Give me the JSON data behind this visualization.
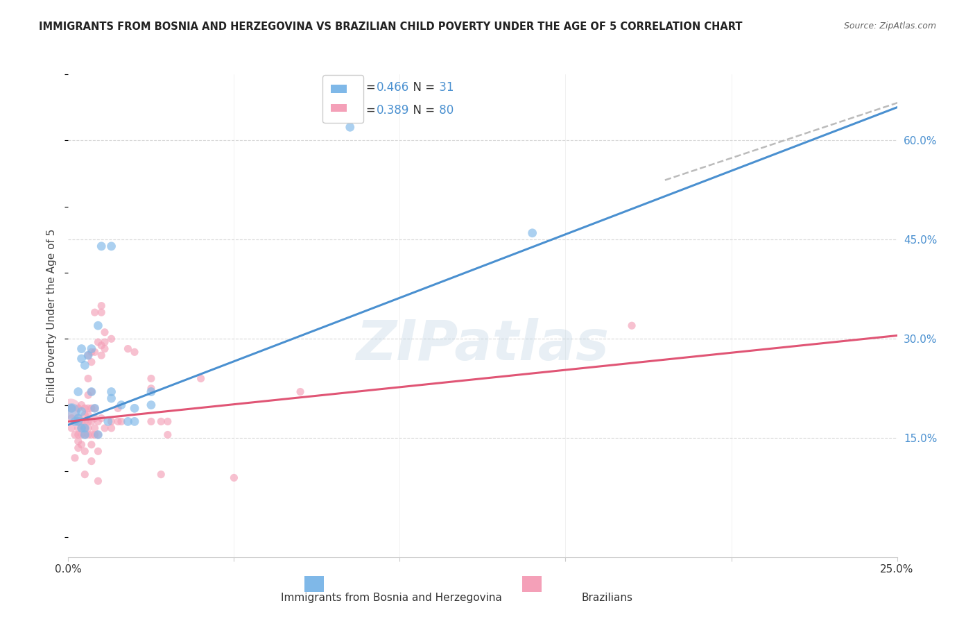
{
  "title": "IMMIGRANTS FROM BOSNIA AND HERZEGOVINA VS BRAZILIAN CHILD POVERTY UNDER THE AGE OF 5 CORRELATION CHART",
  "source": "Source: ZipAtlas.com",
  "ylabel": "Child Poverty Under the Age of 5",
  "x_lim": [
    0.0,
    0.25
  ],
  "y_lim": [
    -0.03,
    0.7
  ],
  "y_ticks_labels": [
    "15.0%",
    "30.0%",
    "45.0%",
    "60.0%"
  ],
  "y_ticks_vals": [
    0.15,
    0.3,
    0.45,
    0.6
  ],
  "R1": 0.466,
  "N1": 31,
  "R2": 0.389,
  "N2": 80,
  "color_blue": "#7fb8e8",
  "color_pink": "#f4a0b8",
  "line_blue": "#4a90d0",
  "line_pink": "#e05575",
  "dash_color": "#bbbbbb",
  "grid_color": "#d8d8d8",
  "watermark": "ZIPatlas",
  "legend_label1": "Immigrants from Bosnia and Herzegovina",
  "legend_label2": "Brazilians",
  "blue_x": [
    0.001,
    0.002,
    0.003,
    0.003,
    0.003,
    0.004,
    0.004,
    0.004,
    0.004,
    0.005,
    0.005,
    0.005,
    0.006,
    0.007,
    0.007,
    0.008,
    0.009,
    0.009,
    0.01,
    0.012,
    0.013,
    0.013,
    0.013,
    0.016,
    0.018,
    0.02,
    0.02,
    0.025,
    0.025,
    0.085,
    0.14
  ],
  "blue_y": [
    0.195,
    0.175,
    0.18,
    0.22,
    0.175,
    0.19,
    0.165,
    0.27,
    0.285,
    0.26,
    0.165,
    0.155,
    0.275,
    0.285,
    0.22,
    0.195,
    0.32,
    0.155,
    0.44,
    0.175,
    0.44,
    0.21,
    0.22,
    0.2,
    0.175,
    0.195,
    0.175,
    0.22,
    0.2,
    0.62,
    0.46
  ],
  "pink_x": [
    0.001,
    0.001,
    0.001,
    0.002,
    0.002,
    0.002,
    0.003,
    0.003,
    0.003,
    0.003,
    0.003,
    0.003,
    0.003,
    0.004,
    0.004,
    0.004,
    0.004,
    0.004,
    0.005,
    0.005,
    0.005,
    0.005,
    0.005,
    0.005,
    0.005,
    0.006,
    0.006,
    0.006,
    0.006,
    0.006,
    0.006,
    0.006,
    0.006,
    0.007,
    0.007,
    0.007,
    0.007,
    0.007,
    0.007,
    0.007,
    0.007,
    0.008,
    0.008,
    0.008,
    0.008,
    0.008,
    0.008,
    0.009,
    0.009,
    0.009,
    0.009,
    0.009,
    0.01,
    0.01,
    0.01,
    0.01,
    0.01,
    0.011,
    0.011,
    0.011,
    0.011,
    0.013,
    0.013,
    0.013,
    0.015,
    0.015,
    0.016,
    0.018,
    0.02,
    0.025,
    0.025,
    0.025,
    0.028,
    0.028,
    0.03,
    0.03,
    0.04,
    0.05,
    0.07,
    0.17
  ],
  "pink_y": [
    0.195,
    0.18,
    0.165,
    0.175,
    0.155,
    0.12,
    0.195,
    0.18,
    0.175,
    0.165,
    0.155,
    0.145,
    0.135,
    0.2,
    0.175,
    0.165,
    0.155,
    0.14,
    0.195,
    0.185,
    0.175,
    0.165,
    0.155,
    0.13,
    0.095,
    0.275,
    0.24,
    0.215,
    0.195,
    0.185,
    0.175,
    0.165,
    0.155,
    0.28,
    0.265,
    0.22,
    0.195,
    0.175,
    0.155,
    0.14,
    0.115,
    0.34,
    0.28,
    0.195,
    0.18,
    0.165,
    0.155,
    0.295,
    0.175,
    0.155,
    0.13,
    0.085,
    0.35,
    0.34,
    0.29,
    0.275,
    0.18,
    0.31,
    0.295,
    0.285,
    0.165,
    0.3,
    0.175,
    0.165,
    0.195,
    0.175,
    0.175,
    0.285,
    0.28,
    0.24,
    0.225,
    0.175,
    0.175,
    0.095,
    0.175,
    0.155,
    0.24,
    0.09,
    0.22,
    0.32
  ],
  "blue_line_x": [
    0.0,
    0.25
  ],
  "blue_line_y": [
    0.17,
    0.65
  ],
  "pink_line_x": [
    0.0,
    0.25
  ],
  "pink_line_y": [
    0.175,
    0.305
  ],
  "dashed_line_x": [
    0.18,
    0.255
  ],
  "dashed_line_y": [
    0.54,
    0.665
  ],
  "tick_label_color_blue": "#4a90d0"
}
